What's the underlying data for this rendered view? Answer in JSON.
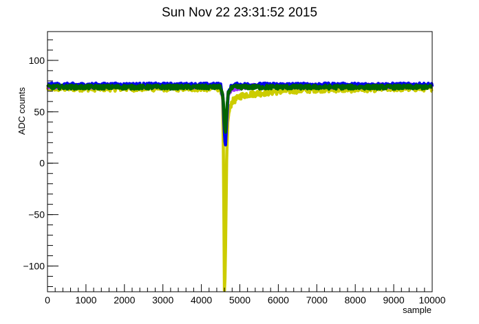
{
  "chart_data": {
    "type": "line",
    "title": "Sun Nov 22 23:31:52 2015",
    "xlabel": "sample",
    "ylabel": "ADC counts",
    "xlim": [
      0,
      10000
    ],
    "ylim": [
      -125,
      128
    ],
    "x_ticks": [
      "0",
      "1000",
      "2000",
      "3000",
      "4000",
      "5000",
      "6000",
      "7000",
      "8000",
      "9000",
      "10000"
    ],
    "y_ticks": [
      "−100",
      "−50",
      "0",
      "50",
      "100"
    ],
    "grid": false,
    "legend": "none",
    "series": [
      {
        "color": "#cccc00",
        "noise": 3,
        "x": [
          0,
          4500,
          4560,
          4580,
          4600,
          4620,
          4640,
          4660,
          4680,
          4700,
          4750,
          4800,
          4900,
          5000,
          5200,
          5500,
          6000,
          6500,
          7000,
          8000,
          9000,
          10000
        ],
        "y": [
          73,
          73,
          60,
          -20,
          -125,
          -110,
          -50,
          10,
          35,
          45,
          55,
          60,
          62,
          65,
          67,
          68,
          70,
          71,
          72,
          72,
          73,
          73
        ]
      },
      {
        "color": "#9b30ff",
        "noise": 2,
        "x": [
          0,
          4500,
          4560,
          4600,
          4620,
          4640,
          4660,
          4680,
          4700,
          4750,
          4800,
          4900,
          5000,
          5500,
          10000
        ],
        "y": [
          75,
          75,
          65,
          40,
          20,
          25,
          40,
          55,
          65,
          70,
          72,
          73,
          74,
          75,
          75
        ]
      },
      {
        "color": "#0000ee",
        "noise": 2,
        "x": [
          0,
          4500,
          4560,
          4600,
          4620,
          4640,
          4660,
          4680,
          4700,
          4750,
          4800,
          4900,
          5000,
          5500,
          10000
        ],
        "y": [
          76,
          76,
          65,
          30,
          15,
          25,
          45,
          60,
          68,
          73,
          75,
          76,
          76,
          76,
          76
        ]
      },
      {
        "color": "#006400",
        "noise": 2,
        "x": [
          0,
          4500,
          4560,
          4600,
          4620,
          4640,
          4660,
          4680,
          4700,
          4750,
          4800,
          4900,
          5000,
          5500,
          10000
        ],
        "y": [
          74,
          74,
          65,
          40,
          28,
          35,
          50,
          62,
          68,
          72,
          73,
          74,
          74,
          74,
          74
        ]
      }
    ]
  }
}
